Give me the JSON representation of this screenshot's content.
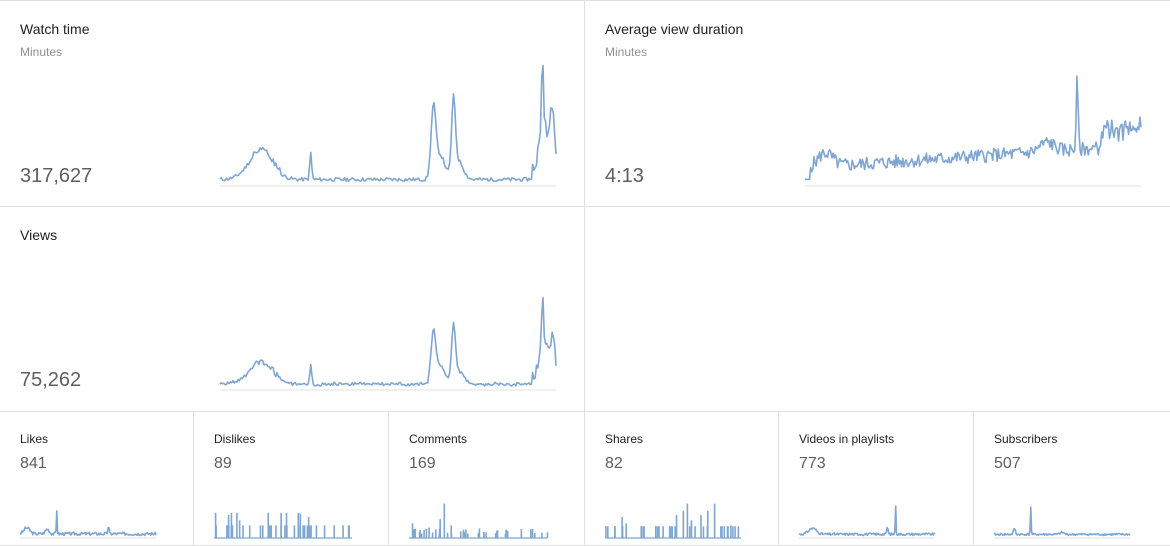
{
  "colors": {
    "line": "#7fa6d1",
    "baseline": "#e0e0e0",
    "divider": "#e0e0e0"
  },
  "metrics": {
    "watch_time": {
      "title": "Watch time",
      "subtitle": "Minutes",
      "value": "317,627"
    },
    "avg_view_duration": {
      "title": "Average view duration",
      "subtitle": "Minutes",
      "value": "4:13"
    },
    "views": {
      "title": "Views",
      "value": "75,262"
    }
  },
  "small_metrics": [
    {
      "title": "Likes",
      "value": "841"
    },
    {
      "title": "Dislikes",
      "value": "89"
    },
    {
      "title": "Comments",
      "value": "169"
    },
    {
      "title": "Shares",
      "value": "82"
    },
    {
      "title": "Videos in playlists",
      "value": "773"
    },
    {
      "title": "Subscribers",
      "value": "507"
    }
  ]
}
